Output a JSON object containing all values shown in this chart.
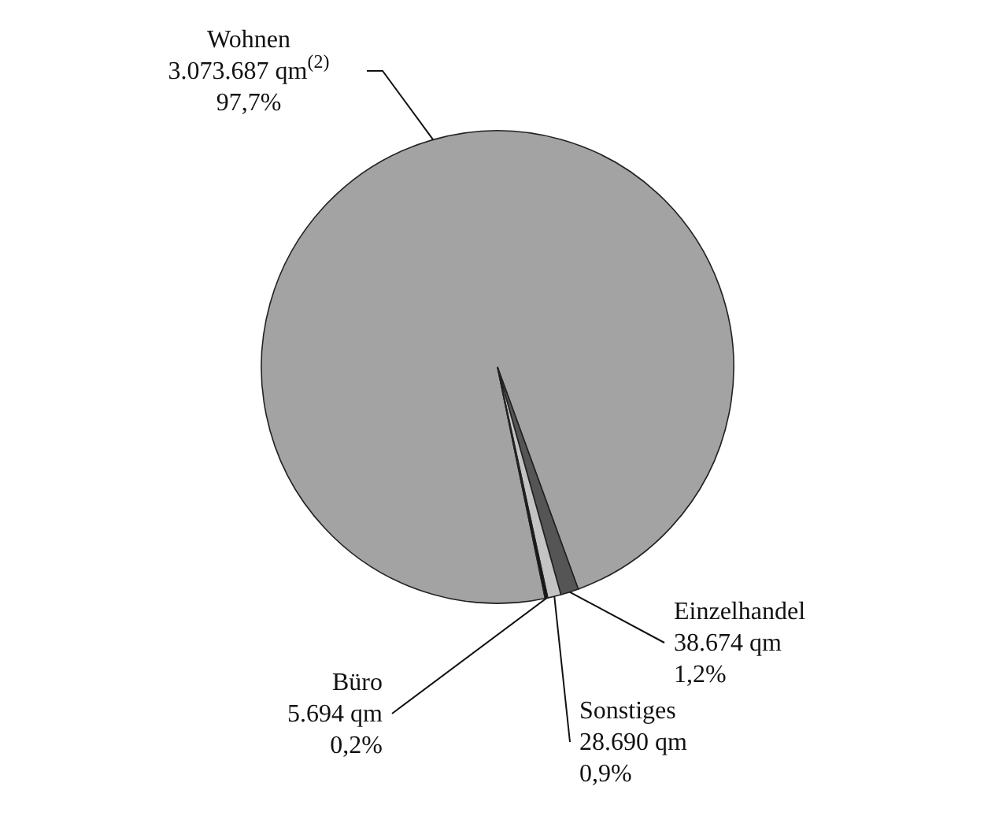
{
  "chart_data": {
    "type": "pie",
    "categories": [
      "Wohnen",
      "Einzelhandel",
      "Sonstiges",
      "Büro"
    ],
    "values": [
      3073687,
      38674,
      28690,
      5694
    ],
    "colors": [
      "#a3a3a3",
      "#555555",
      "#c4c4c4",
      "#111111"
    ],
    "value_labels": [
      "3.073.687 qm$^{(2)}$\n97,7%",
      "38.674 qm\n1,2%",
      "28.690 qm\n0,9%",
      "5.694 qm\n0,2%"
    ]
  }
}
